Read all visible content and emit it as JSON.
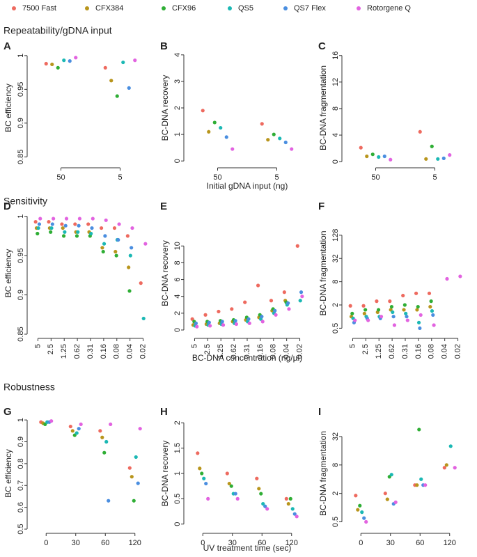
{
  "legend": [
    {
      "name": "7500 Fast",
      "color": "#ee6a5f"
    },
    {
      "name": "CFX384",
      "color": "#b8951c"
    },
    {
      "name": "CFX96",
      "color": "#2fae35"
    },
    {
      "name": "QS5",
      "color": "#1bb8b4"
    },
    {
      "name": "QS7 Flex",
      "color": "#4a8ee0"
    },
    {
      "name": "Rotorgene Q",
      "color": "#e263e0"
    }
  ],
  "sections": [
    {
      "title": "Repeatability/gDNA input",
      "xlabel": "Initial gDNA input (ng)"
    },
    {
      "title": "Sensitivity",
      "xlabel": "BC-DNA concentration (ng/µl)"
    },
    {
      "title": "Robustness",
      "xlabel": "UV treatment time (sec)"
    }
  ],
  "chart_data": [
    {
      "type": "scatter",
      "panel": "A",
      "ylabel": "BC efficiency",
      "categories": [
        "50",
        "5"
      ],
      "ylim": [
        0.84,
        1.005
      ],
      "yticks": [
        0.85,
        0.9,
        0.95,
        1
      ],
      "log": false,
      "series": [
        {
          "values": [
            0.988,
            0.982
          ]
        },
        {
          "values": [
            0.987,
            0.963
          ]
        },
        {
          "values": [
            0.982,
            0.94
          ]
        },
        {
          "values": [
            0.993,
            0.99
          ]
        },
        {
          "values": [
            0.992,
            0.952
          ]
        },
        {
          "values": [
            0.997,
            0.993
          ]
        }
      ]
    },
    {
      "type": "scatter",
      "panel": "B",
      "ylabel": "BC-DNA recovery",
      "categories": [
        "50",
        "5"
      ],
      "ylim": [
        -0.1,
        4.1
      ],
      "yticks": [
        0,
        1,
        2,
        3,
        4
      ],
      "log": false,
      "series": [
        {
          "values": [
            1.9,
            1.4
          ]
        },
        {
          "values": [
            1.1,
            0.8
          ]
        },
        {
          "values": [
            1.45,
            1.0
          ]
        },
        {
          "values": [
            1.25,
            0.85
          ]
        },
        {
          "values": [
            0.9,
            0.7
          ]
        },
        {
          "values": [
            0.45,
            0.45
          ]
        }
      ]
    },
    {
      "type": "scatter",
      "panel": "C",
      "ylabel": "BC-DNA fragmentation",
      "categories": [
        "50",
        "5"
      ],
      "ylim": [
        -0.3,
        16.5
      ],
      "yticks": [
        0,
        4,
        8,
        12,
        16
      ],
      "log": false,
      "series": [
        {
          "values": [
            2.1,
            4.5
          ]
        },
        {
          "values": [
            0.8,
            0.4
          ]
        },
        {
          "values": [
            1.1,
            2.3
          ]
        },
        {
          "values": [
            0.7,
            0.4
          ]
        },
        {
          "values": [
            0.8,
            0.5
          ]
        },
        {
          "values": [
            0.3,
            1.0
          ]
        }
      ]
    },
    {
      "type": "scatter",
      "panel": "D",
      "ylabel": "BC efficiency",
      "categories": [
        "5",
        "2.5",
        "1.25",
        "0.62",
        "0.31",
        "0.16",
        "0.08",
        "0.04",
        "0.02"
      ],
      "ylim": [
        0.85,
        1.005
      ],
      "yticks": [
        0.85,
        0.9,
        0.95,
        1
      ],
      "log": false,
      "series": [
        {
          "values": [
            0.993,
            0.993,
            0.99,
            0.99,
            0.99,
            0.985,
            0.985,
            0.975,
            0.915
          ]
        },
        {
          "values": [
            0.985,
            0.985,
            0.985,
            0.98,
            0.98,
            0.96,
            0.955,
            0.935,
            null
          ]
        },
        {
          "values": [
            0.978,
            0.98,
            0.975,
            0.975,
            0.975,
            0.955,
            0.95,
            0.905,
            null
          ]
        },
        {
          "values": [
            0.985,
            0.985,
            0.98,
            0.98,
            0.978,
            0.965,
            0.97,
            0.95,
            0.87
          ]
        },
        {
          "values": [
            0.99,
            0.99,
            0.988,
            0.988,
            0.985,
            0.975,
            0.97,
            0.96,
            null
          ]
        },
        {
          "values": [
            0.997,
            0.997,
            0.997,
            0.997,
            0.997,
            0.995,
            0.99,
            0.985,
            0.965
          ]
        }
      ]
    },
    {
      "type": "scatter",
      "panel": "E",
      "ylabel": "BC-DNA recovery",
      "categories": [
        "5",
        "2.5",
        "1.25",
        "0.62",
        "0.31",
        "0.16",
        "0.08",
        "0.04",
        "0.02"
      ],
      "ylim": [
        -0.5,
        14
      ],
      "yticks": [
        0,
        2,
        4,
        6,
        8,
        10
      ],
      "log": false,
      "series": [
        {
          "values": [
            1.3,
            1.8,
            2.2,
            2.5,
            3.3,
            5.3,
            3.5,
            4.5,
            10
          ]
        },
        {
          "values": [
            0.6,
            0.7,
            0.8,
            1.0,
            1.2,
            1.5,
            2.3,
            3.5,
            null
          ]
        },
        {
          "values": [
            1.0,
            1.0,
            1.1,
            1.2,
            1.5,
            1.8,
            2.5,
            3.3,
            null
          ]
        },
        {
          "values": [
            0.5,
            0.6,
            0.7,
            0.8,
            1.0,
            1.3,
            2.0,
            3.0,
            3.5
          ]
        },
        {
          "values": [
            0.8,
            0.9,
            1.0,
            1.1,
            1.3,
            1.6,
            2.3,
            3.2,
            4.5
          ]
        },
        {
          "values": [
            0.4,
            0.5,
            0.6,
            0.7,
            0.8,
            1.0,
            1.8,
            2.5,
            4
          ]
        }
      ]
    },
    {
      "type": "scatter",
      "panel": "F",
      "ylabel": "BC-DNA fragmentation",
      "categories": [
        "5",
        "2.5",
        "1.25",
        "0.62",
        "0.31",
        "0.16",
        "0.08",
        "0.04",
        "0.02"
      ],
      "ylim": [
        0.35,
        500
      ],
      "yticks": [
        0.5,
        2,
        8,
        32,
        128
      ],
      "log": true,
      "series": [
        {
          "values": [
            1.9,
            1.9,
            2.5,
            2.5,
            3.5,
            4,
            4,
            null,
            null
          ]
        },
        {
          "values": [
            1,
            1.2,
            1.3,
            1.5,
            1.5,
            1.5,
            1.8,
            null,
            null
          ]
        },
        {
          "values": [
            1.2,
            1.5,
            1.5,
            1.8,
            2,
            1.8,
            2.5,
            null,
            null
          ]
        },
        {
          "values": [
            0.9,
            1,
            1,
            1.3,
            1.2,
            0.7,
            1.4,
            null,
            null
          ]
        },
        {
          "values": [
            0.7,
            0.9,
            0.9,
            1,
            1,
            0.5,
            1.1,
            null,
            null
          ]
        },
        {
          "values": [
            0.8,
            0.8,
            1,
            0.6,
            0.8,
            1.1,
            0.6,
            9.5,
            11
          ]
        }
      ]
    },
    {
      "type": "scatter",
      "panel": "G",
      "ylabel": "BC efficiency",
      "categories": [
        "0",
        "30",
        "60",
        "120"
      ],
      "ylim": [
        0.5,
        1.01
      ],
      "yticks": [
        0.5,
        0.6,
        0.7,
        0.8,
        0.9,
        1
      ],
      "log": false,
      "series": [
        {
          "values": [
            0.99,
            0.97,
            0.95,
            0.78
          ]
        },
        {
          "values": [
            0.985,
            0.95,
            0.92,
            0.74
          ]
        },
        {
          "values": [
            0.98,
            0.93,
            0.85,
            0.63
          ]
        },
        {
          "values": [
            0.99,
            0.94,
            0.9,
            0.83
          ]
        },
        {
          "values": [
            0.99,
            0.96,
            0.63,
            0.71
          ]
        },
        {
          "values": [
            0.995,
            0.98,
            0.98,
            0.96
          ]
        }
      ]
    },
    {
      "type": "scatter",
      "panel": "H",
      "ylabel": "BC-DNA recovery",
      "categories": [
        "0",
        "30",
        "60",
        "120"
      ],
      "ylim": [
        -0.1,
        2.1
      ],
      "yticks": [
        0,
        0.5,
        1,
        1.5,
        2
      ],
      "log": false,
      "series": [
        {
          "values": [
            1.4,
            1.0,
            0.9,
            0.5
          ]
        },
        {
          "values": [
            1.1,
            0.8,
            0.7,
            0.4
          ]
        },
        {
          "values": [
            1.0,
            0.75,
            0.6,
            0.5
          ]
        },
        {
          "values": [
            0.9,
            0.6,
            0.4,
            0.3
          ]
        },
        {
          "values": [
            0.8,
            0.6,
            0.35,
            0.2
          ]
        },
        {
          "values": [
            0.5,
            0.5,
            0.3,
            0.15
          ]
        }
      ]
    },
    {
      "type": "scatter",
      "panel": "I",
      "ylabel": "BC-DNA fragmentation",
      "categories": [
        "0",
        "30",
        "60",
        "120"
      ],
      "ylim": [
        0.35,
        80
      ],
      "yticks": [
        0.5,
        2,
        8,
        32
      ],
      "log": true,
      "series": [
        {
          "values": [
            1.8,
            2,
            3,
            7
          ]
        },
        {
          "values": [
            0.9,
            1.5,
            3,
            8
          ]
        },
        {
          "values": [
            1.1,
            4.5,
            45,
            null
          ]
        },
        {
          "values": [
            0.8,
            5,
            4,
            20
          ]
        },
        {
          "values": [
            0.6,
            1.2,
            3,
            null
          ]
        },
        {
          "values": [
            0.5,
            1.3,
            3,
            7
          ]
        }
      ]
    }
  ]
}
